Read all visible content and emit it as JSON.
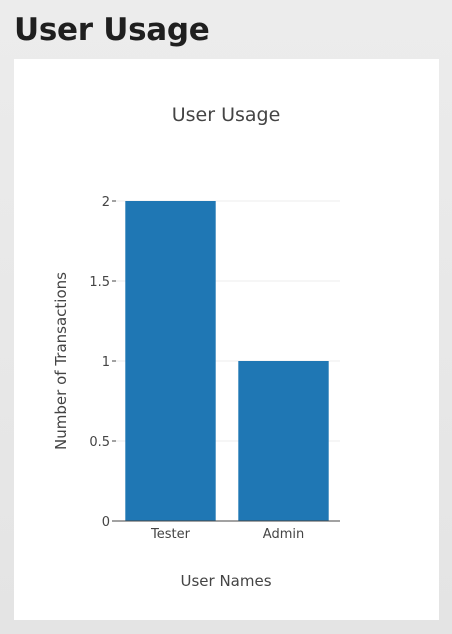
{
  "page": {
    "title": "User Usage"
  },
  "chart_data": {
    "type": "bar",
    "title": "User Usage",
    "categories": [
      "Tester",
      "Admin"
    ],
    "values": [
      2,
      1
    ],
    "xlabel": "User Names",
    "ylabel": "Number of Transactions",
    "ylim": [
      0,
      2
    ],
    "yticks": [
      0,
      0.5,
      1,
      1.5,
      2
    ],
    "ytick_labels": [
      "0",
      "0.5",
      "1",
      "1.5",
      "2"
    ],
    "grid": true,
    "bar_color": "#1f77b4",
    "grid_color": "#eeeeee",
    "axis_color": "#444444",
    "text_color": "#444444"
  }
}
